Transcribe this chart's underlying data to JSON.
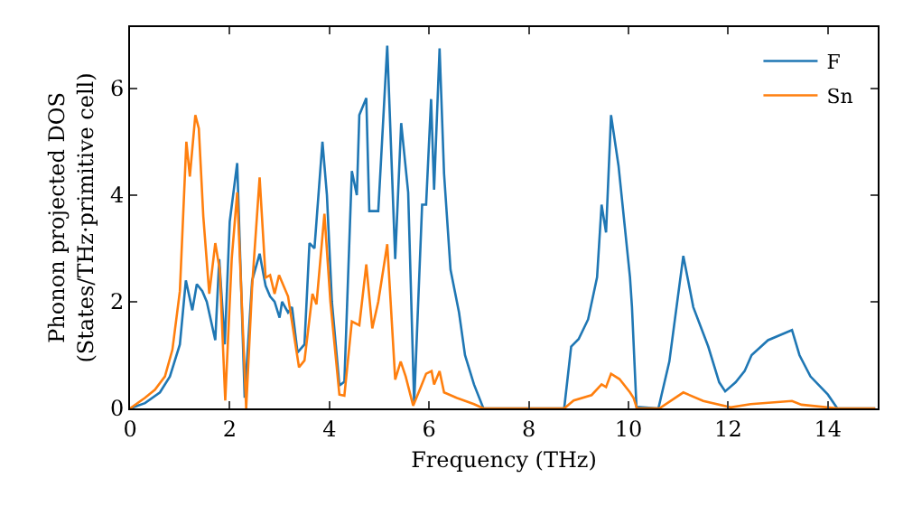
{
  "chart_data": {
    "type": "line",
    "xlabel": "Frequency (THz)",
    "ylabel": "Phonon projected DOS\n(States/THz·primitive cell)",
    "xlim": [
      0,
      15
    ],
    "ylim": [
      0,
      7.15
    ],
    "xticks": [
      0,
      2,
      4,
      6,
      8,
      10,
      12,
      14
    ],
    "yticks": [
      0,
      2,
      4,
      6
    ],
    "grid": false,
    "legend": "top right",
    "marker": "none",
    "line_style": "solid",
    "series": [
      {
        "name": "F",
        "color": "#1f77b4",
        "x": [
          0,
          0.3,
          0.6,
          0.8,
          1.0,
          1.12,
          1.25,
          1.34,
          1.45,
          1.54,
          1.71,
          1.79,
          1.9,
          2.0,
          2.15,
          2.3,
          2.45,
          2.6,
          2.72,
          2.81,
          2.9,
          3.0,
          3.05,
          3.17,
          3.25,
          3.36,
          3.5,
          3.6,
          3.7,
          3.86,
          3.95,
          4.05,
          4.2,
          4.3,
          4.45,
          4.55,
          4.6,
          4.74,
          4.8,
          4.98,
          5.16,
          5.32,
          5.44,
          5.58,
          5.7,
          5.86,
          5.94,
          6.04,
          6.1,
          6.21,
          6.3,
          6.43,
          6.6,
          6.72,
          6.9,
          7.09,
          8.71,
          8.85,
          9.0,
          9.19,
          9.37,
          9.46,
          9.55,
          9.65,
          9.8,
          10.03,
          10.07,
          10.16,
          10.6,
          10.82,
          10.94,
          11.1,
          11.3,
          11.6,
          11.82,
          11.94,
          12.15,
          12.33,
          12.47,
          12.8,
          13.28,
          13.43,
          13.65,
          14.0,
          14.19,
          14.95
        ],
        "values": [
          0,
          0.1,
          0.3,
          0.6,
          1.2,
          2.4,
          1.84,
          2.33,
          2.2,
          2.0,
          1.28,
          2.8,
          1.2,
          3.5,
          4.6,
          0.2,
          2.4,
          2.9,
          2.3,
          2.1,
          2.0,
          1.7,
          2.0,
          1.8,
          1.9,
          1.05,
          1.2,
          3.1,
          3.0,
          5.0,
          4.0,
          2.0,
          0.43,
          0.5,
          4.45,
          4.0,
          5.5,
          5.82,
          3.7,
          3.7,
          6.8,
          2.8,
          5.35,
          4.05,
          0.1,
          3.82,
          3.82,
          5.8,
          4.1,
          6.75,
          4.4,
          2.6,
          1.8,
          1.0,
          0.45,
          0,
          0,
          1.16,
          1.3,
          1.67,
          2.46,
          3.82,
          3.3,
          5.5,
          4.55,
          2.46,
          1.9,
          0.03,
          0,
          0.88,
          1.73,
          2.86,
          1.9,
          1.16,
          0.49,
          0.32,
          0.49,
          0.7,
          1.0,
          1.28,
          1.47,
          1.0,
          0.6,
          0.26,
          0,
          0
        ]
      },
      {
        "name": "Sn",
        "color": "#ff7f0e",
        "x": [
          0,
          0.3,
          0.5,
          0.7,
          0.85,
          1.0,
          1.13,
          1.2,
          1.31,
          1.38,
          1.47,
          1.59,
          1.71,
          1.8,
          1.91,
          2.04,
          2.15,
          2.33,
          2.45,
          2.6,
          2.72,
          2.81,
          2.9,
          2.99,
          3.17,
          3.39,
          3.5,
          3.66,
          3.74,
          3.9,
          4.02,
          4.2,
          4.3,
          4.45,
          4.6,
          4.74,
          4.86,
          4.98,
          5.16,
          5.32,
          5.43,
          5.53,
          5.68,
          5.82,
          5.94,
          6.05,
          6.1,
          6.21,
          6.3,
          6.55,
          6.9,
          7.09,
          8.71,
          8.9,
          9.26,
          9.46,
          9.55,
          9.65,
          9.82,
          10.03,
          10.1,
          10.17,
          10.62,
          11.1,
          11.5,
          12.05,
          12.45,
          13.28,
          13.47,
          14.2,
          14.95
        ],
        "values": [
          0,
          0.2,
          0.35,
          0.6,
          1.1,
          2.2,
          5.0,
          4.35,
          5.5,
          5.25,
          3.6,
          2.15,
          3.1,
          2.6,
          0.15,
          2.8,
          4.05,
          0,
          2.3,
          4.33,
          2.45,
          2.5,
          2.15,
          2.5,
          2.1,
          0.77,
          0.9,
          2.15,
          1.95,
          3.65,
          2.0,
          0.26,
          0.24,
          1.63,
          1.56,
          2.7,
          1.5,
          2.0,
          3.08,
          0.54,
          0.88,
          0.6,
          0.05,
          0.37,
          0.65,
          0.7,
          0.45,
          0.7,
          0.3,
          0.2,
          0.08,
          0,
          0,
          0.15,
          0.25,
          0.45,
          0.4,
          0.65,
          0.55,
          0.3,
          0.2,
          0,
          0,
          0.3,
          0.14,
          0.02,
          0.08,
          0.14,
          0.07,
          0,
          0
        ]
      }
    ]
  }
}
